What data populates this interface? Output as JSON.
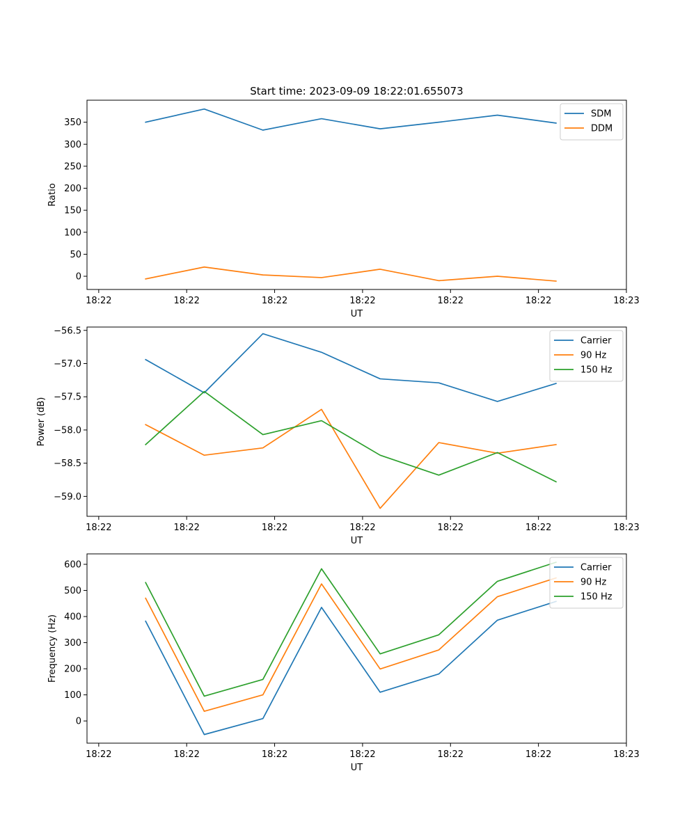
{
  "chart_data": [
    {
      "type": "line",
      "title": "Start time: 2023-09-09 18:22:01.655073",
      "xlabel": "UT",
      "ylabel": "Ratio",
      "x": [
        1,
        2,
        3,
        4,
        5,
        6,
        7,
        8
      ],
      "xlim": [
        0,
        9.2
      ],
      "xticks": [
        0.2,
        1.7,
        3.2,
        4.7,
        6.2,
        7.7,
        9.2
      ],
      "xtick_labels": [
        "18:22",
        "18:22",
        "18:22",
        "18:22",
        "18:22",
        "18:22",
        "18:23"
      ],
      "ylim": [
        -30,
        400
      ],
      "yticks": [
        0,
        50,
        100,
        150,
        200,
        250,
        300,
        350
      ],
      "ytick_labels": [
        "0",
        "50",
        "100",
        "150",
        "200",
        "250",
        "300",
        "350"
      ],
      "legend_position": "top-right",
      "series": [
        {
          "name": "SDM",
          "color": "#1f77b4",
          "values": [
            350,
            380,
            332,
            358,
            335,
            350,
            366,
            348
          ]
        },
        {
          "name": "DDM",
          "color": "#ff7f0e",
          "values": [
            -6,
            21,
            3,
            -3,
            16,
            -10,
            0,
            -11
          ]
        }
      ]
    },
    {
      "type": "line",
      "title": "",
      "xlabel": "UT",
      "ylabel": "Power (dB)",
      "x": [
        1,
        2,
        3,
        4,
        5,
        6,
        7,
        8
      ],
      "xlim": [
        0,
        9.2
      ],
      "xticks": [
        0.2,
        1.7,
        3.2,
        4.7,
        6.2,
        7.7,
        9.2
      ],
      "xtick_labels": [
        "18:22",
        "18:22",
        "18:22",
        "18:22",
        "18:22",
        "18:22",
        "18:23"
      ],
      "ylim": [
        -59.3,
        -56.45
      ],
      "yticks": [
        -59.0,
        -58.5,
        -58.0,
        -57.5,
        -57.0,
        -56.5
      ],
      "ytick_labels": [
        "−59.0",
        "−58.5",
        "−58.0",
        "−57.5",
        "−57.0",
        "−56.5"
      ],
      "legend_position": "top-right",
      "series": [
        {
          "name": "Carrier",
          "color": "#1f77b4",
          "values": [
            -56.94,
            -57.44,
            -56.55,
            -56.83,
            -57.23,
            -57.29,
            -57.57,
            -57.3
          ]
        },
        {
          "name": "90 Hz",
          "color": "#ff7f0e",
          "values": [
            -57.92,
            -58.38,
            -58.27,
            -57.69,
            -59.18,
            -58.19,
            -58.35,
            -58.22
          ]
        },
        {
          "name": "150 Hz",
          "color": "#2ca02c",
          "values": [
            -58.22,
            -57.42,
            -58.07,
            -57.86,
            -58.38,
            -58.68,
            -58.34,
            -58.78
          ]
        }
      ]
    },
    {
      "type": "line",
      "title": "",
      "xlabel": "UT",
      "ylabel": "Frequency (Hz)",
      "x": [
        1,
        2,
        3,
        4,
        5,
        6,
        7,
        8
      ],
      "xlim": [
        0,
        9.2
      ],
      "xticks": [
        0.2,
        1.7,
        3.2,
        4.7,
        6.2,
        7.7,
        9.2
      ],
      "xtick_labels": [
        "18:22",
        "18:22",
        "18:22",
        "18:22",
        "18:22",
        "18:22",
        "18:23"
      ],
      "ylim": [
        -85,
        640
      ],
      "yticks": [
        0,
        100,
        200,
        300,
        400,
        500,
        600
      ],
      "ytick_labels": [
        "0",
        "100",
        "200",
        "300",
        "400",
        "500",
        "600"
      ],
      "legend_position": "top-right",
      "series": [
        {
          "name": "Carrier",
          "color": "#1f77b4",
          "values": [
            382,
            -52,
            9,
            435,
            110,
            180,
            386,
            458
          ]
        },
        {
          "name": "90 Hz",
          "color": "#ff7f0e",
          "values": [
            470,
            37,
            100,
            525,
            199,
            272,
            476,
            548
          ]
        },
        {
          "name": "150 Hz",
          "color": "#2ca02c",
          "values": [
            530,
            95,
            159,
            583,
            257,
            330,
            535,
            608
          ]
        }
      ]
    }
  ]
}
